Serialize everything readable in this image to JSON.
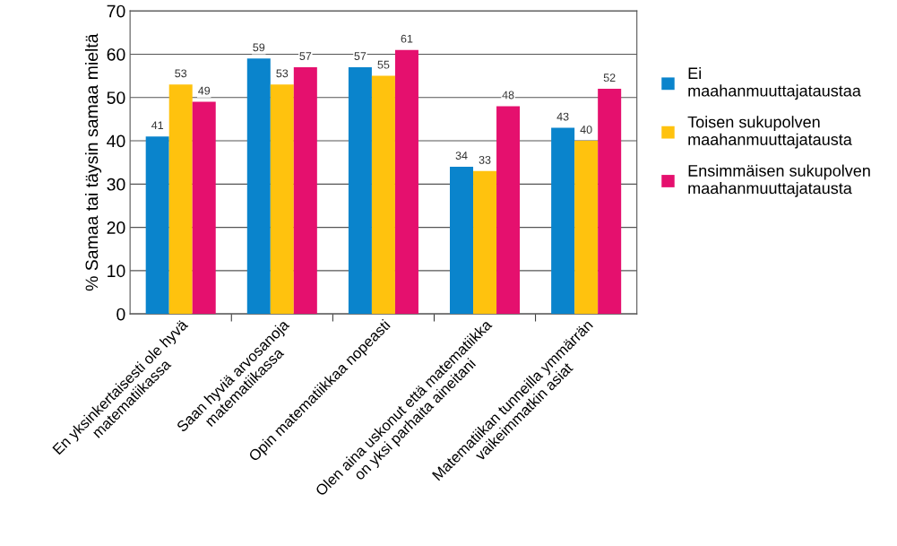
{
  "chart_data": {
    "type": "bar",
    "ylabel": "% Samaa tai täysin samaa mieltä",
    "categories": [
      "En yksinkertaisesti ole hyvä\nmatematiikassa",
      "Saan hyviä arvosanoja\nmatematiikassa",
      "Opin matematiikkaa nopeasti",
      "Olen aina uskonut että matematiikka\non yksi parhaita aineitani",
      "Matematiikan tunneilla ymmärrän\nvaikeimmatkin asiat"
    ],
    "series": [
      {
        "name": "Ei\nmaahanmuuttajataustaa",
        "color": "#0a84cc",
        "values": [
          41,
          59,
          57,
          34,
          43
        ]
      },
      {
        "name": "Toisen sukupolven\nmaahanmuuttajatausta",
        "color": "#ffc20e",
        "values": [
          53,
          53,
          55,
          33,
          40
        ]
      },
      {
        "name": "Ensimmäisen sukupolven\nmaahanmuuttajatausta",
        "color": "#e5106e",
        "values": [
          49,
          57,
          61,
          48,
          52
        ]
      }
    ],
    "ylim": [
      0,
      70
    ],
    "yticks": [
      0,
      10,
      20,
      30,
      40,
      50,
      60,
      70
    ],
    "grid": "y",
    "legend": "right",
    "data_labels": true
  }
}
